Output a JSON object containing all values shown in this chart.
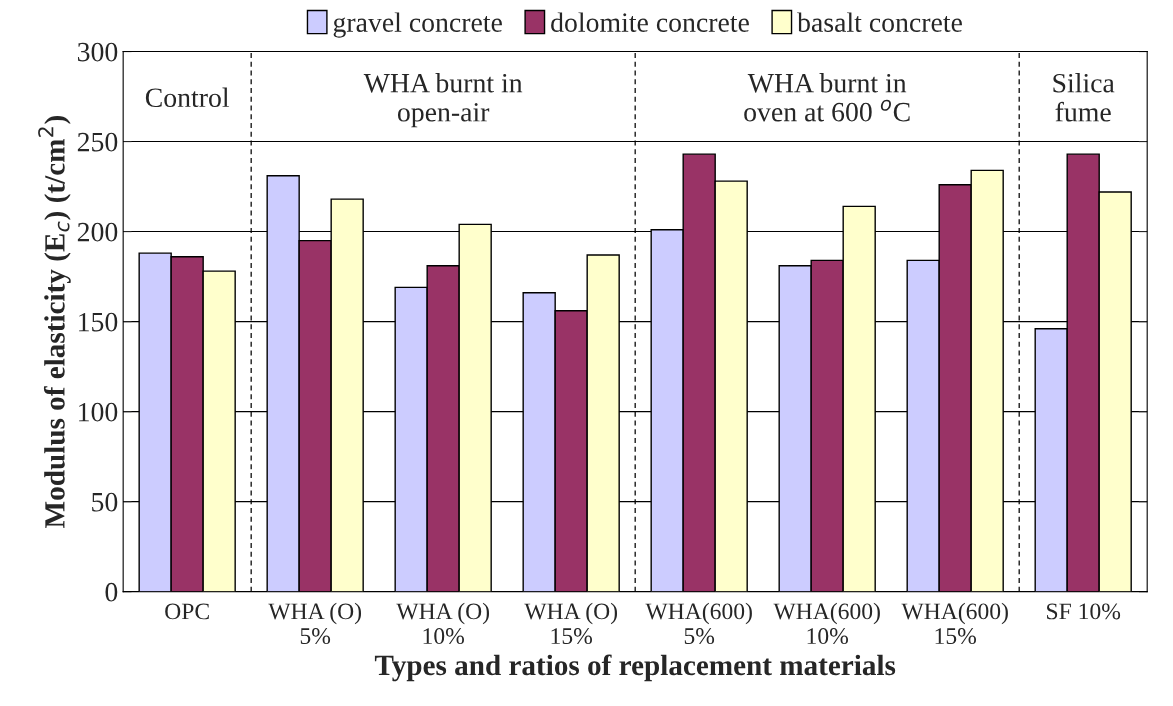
{
  "chart_data": {
    "type": "bar",
    "xlabel": "Types and ratios of replacement materials",
    "ylabel": "Modulus of elasticity (E$_{c}$) (t/cm$^{2}$)",
    "categories": [
      "OPC",
      "WHA (O)\n5%",
      "WHA (O)\n10%",
      "WHA (O)\n15%",
      "WHA(600)\n5%",
      "WHA(600)\n10%",
      "WHA(600)\n15%",
      "SF 10%"
    ],
    "series": [
      {
        "name": "gravel concrete",
        "color": "#ccccff",
        "values": [
          188,
          231,
          169,
          166,
          201,
          181,
          184,
          146
        ]
      },
      {
        "name": "dolomite concrete",
        "color": "#993366",
        "values": [
          186,
          195,
          181,
          156,
          243,
          184,
          226,
          243
        ]
      },
      {
        "name": "basalt concrete",
        "color": "#ffffcc",
        "values": [
          178,
          218,
          204,
          187,
          228,
          214,
          234,
          222
        ]
      }
    ],
    "ylim": [
      0,
      300
    ],
    "yticks": [
      0,
      50,
      100,
      150,
      200,
      250,
      300
    ],
    "grid": "y",
    "legend": "top",
    "annotations": [
      "Control",
      "WHA burnt in\nopen-air",
      "WHA burnt in\noven at 600 $^{o}$C",
      "Silica\nfume"
    ]
  }
}
